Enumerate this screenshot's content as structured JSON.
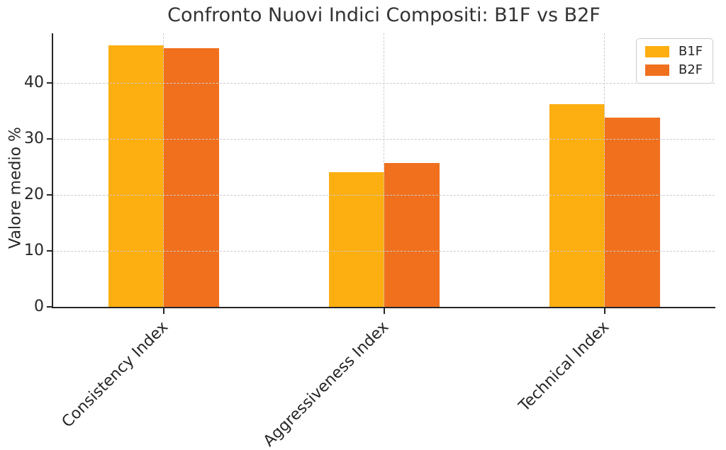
{
  "title": "Confronto Nuovi Indici Compositi: B1F vs B2F",
  "chart_data": {
    "type": "bar",
    "title": "Confronto Nuovi Indici Compositi: B1F vs B2F",
    "xlabel": "",
    "ylabel": "Valore medio %",
    "categories": [
      "Consistency Index",
      "Aggressiveness Index",
      "Technical Index"
    ],
    "series": [
      {
        "name": "B1F",
        "color": "#FDAE10",
        "values": [
          46.8,
          24.1,
          36.2
        ]
      },
      {
        "name": "B2F",
        "color": "#F0701E",
        "values": [
          46.3,
          25.7,
          33.8
        ]
      }
    ],
    "ylim": [
      0,
      48.9
    ],
    "yticks": [
      0,
      10,
      20,
      30,
      40
    ],
    "grid": true,
    "grid_style": "dashed",
    "grid_above_bars": true,
    "legend_position": "upper right",
    "xtick_rotation_deg": 45,
    "spines": [
      "left",
      "bottom"
    ]
  }
}
